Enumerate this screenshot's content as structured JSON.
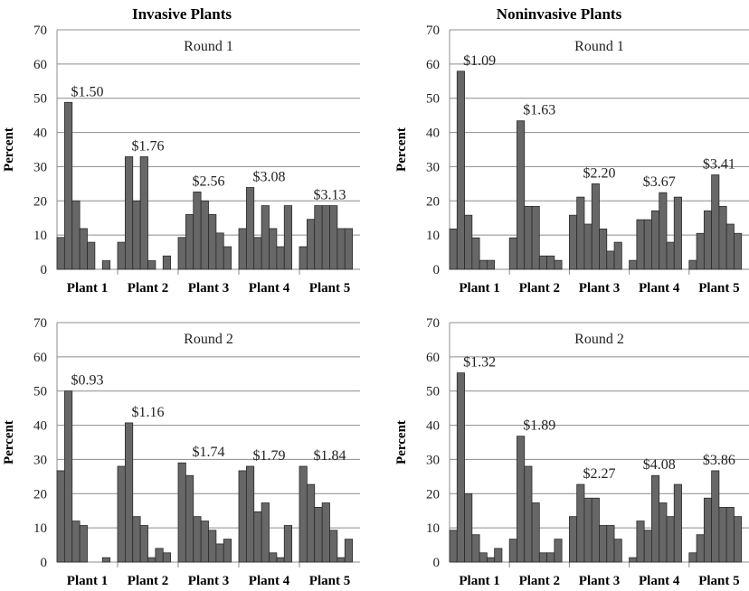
{
  "titles": [
    "Invasive Plants",
    "Noninvasive Plants"
  ],
  "chart_data": [
    {
      "type": "bar",
      "panel": "invasive-round-1",
      "title": "Invasive Plants",
      "subtitle": "Round 1",
      "ylabel": "Percent",
      "ylim": [
        0,
        70
      ],
      "yticks": [
        "0",
        "10",
        "20",
        "30",
        "40",
        "50",
        "60",
        "70"
      ],
      "categories": [
        "Plant 1",
        "Plant 2",
        "Plant 3",
        "Plant 4",
        "Plant 5"
      ],
      "price_labels": [
        "$1.50",
        "$1.76",
        "$2.56",
        "$3.08",
        "$3.13"
      ],
      "bars_per_group": 8,
      "values": [
        [
          9.3,
          48.8,
          20,
          11.9,
          7.9,
          0,
          2.5,
          0
        ],
        [
          7.9,
          32.9,
          20,
          32.9,
          2.5,
          0,
          3.9,
          0
        ],
        [
          9.3,
          16,
          22.6,
          20,
          16,
          10.6,
          6.6,
          0
        ],
        [
          11.9,
          23.9,
          9.3,
          18.6,
          11.9,
          6.6,
          18.6,
          0
        ],
        [
          6.6,
          14.6,
          18.6,
          18.6,
          18.6,
          11.9,
          11.9,
          0
        ]
      ],
      "grid": true
    },
    {
      "type": "bar",
      "panel": "noninvasive-round-1",
      "title": "Noninvasive Plants",
      "subtitle": "Round 1",
      "ylabel": "Percent",
      "ylim": [
        0,
        70
      ],
      "yticks": [
        "0",
        "10",
        "20",
        "30",
        "40",
        "50",
        "60",
        "70"
      ],
      "categories": [
        "Plant 1",
        "Plant 2",
        "Plant 3",
        "Plant 4",
        "Plant 5"
      ],
      "price_labels": [
        "$1.09",
        "$1.63",
        "$2.20",
        "$3.67",
        "$3.41"
      ],
      "bars_per_group": 8,
      "values": [
        [
          11.8,
          57.9,
          15.8,
          9.2,
          2.6,
          2.6,
          0,
          0
        ],
        [
          9.2,
          43.4,
          18.4,
          18.4,
          3.9,
          3.9,
          2.6,
          0
        ],
        [
          15.8,
          21.1,
          13.2,
          25,
          11.8,
          5.3,
          7.9,
          0
        ],
        [
          2.6,
          14.5,
          14.5,
          17.1,
          22.4,
          7.9,
          21.1,
          0
        ],
        [
          2.6,
          10.5,
          17.1,
          27.6,
          18.4,
          13.2,
          10.5,
          0
        ]
      ],
      "grid": true
    },
    {
      "type": "bar",
      "panel": "invasive-round-2",
      "title": "Invasive Plants",
      "subtitle": "Round 2",
      "ylabel": "Percent",
      "ylim": [
        0,
        70
      ],
      "yticks": [
        "0",
        "10",
        "20",
        "30",
        "40",
        "50",
        "60",
        "70"
      ],
      "categories": [
        "Plant 1",
        "Plant 2",
        "Plant 3",
        "Plant 4",
        "Plant 5"
      ],
      "price_labels": [
        "$0.93",
        "$1.16",
        "$1.74",
        "$1.79",
        "$1.84"
      ],
      "bars_per_group": 8,
      "values": [
        [
          26.7,
          50,
          12,
          10.7,
          0,
          0,
          1.3,
          0
        ],
        [
          28,
          40.7,
          13.3,
          10.7,
          1.3,
          4,
          2.7,
          0
        ],
        [
          29,
          25.3,
          13.3,
          12,
          9.3,
          5.3,
          6.7,
          0
        ],
        [
          26.7,
          28,
          14.7,
          17.3,
          2.7,
          1.3,
          10.7,
          0
        ],
        [
          28,
          22.7,
          16,
          17.3,
          9.3,
          1.3,
          6.7,
          0
        ]
      ],
      "grid": true
    },
    {
      "type": "bar",
      "panel": "noninvasive-round-2",
      "title": "Noninvasive Plants",
      "subtitle": "Round 2",
      "ylabel": "Percent",
      "ylim": [
        0,
        70
      ],
      "yticks": [
        "0",
        "10",
        "20",
        "30",
        "40",
        "50",
        "60",
        "70"
      ],
      "categories": [
        "Plant 1",
        "Plant 2",
        "Plant 3",
        "Plant 4",
        "Plant 5"
      ],
      "price_labels": [
        "$1.32",
        "$1.89",
        "$2.27",
        "$4.08",
        "$3.86"
      ],
      "bars_per_group": 8,
      "values": [
        [
          9.3,
          55.3,
          20,
          8,
          2.7,
          1.3,
          4,
          0
        ],
        [
          6.7,
          36.8,
          28,
          17.3,
          2.7,
          2.7,
          6.7,
          0
        ],
        [
          13.3,
          22.7,
          18.7,
          18.7,
          10.7,
          10.7,
          6.7,
          0
        ],
        [
          1.3,
          12,
          9.3,
          25.3,
          17.3,
          13.3,
          22.7,
          0
        ],
        [
          2.7,
          8,
          18.7,
          26.7,
          16,
          16,
          13.3,
          0
        ]
      ],
      "grid": true
    }
  ]
}
